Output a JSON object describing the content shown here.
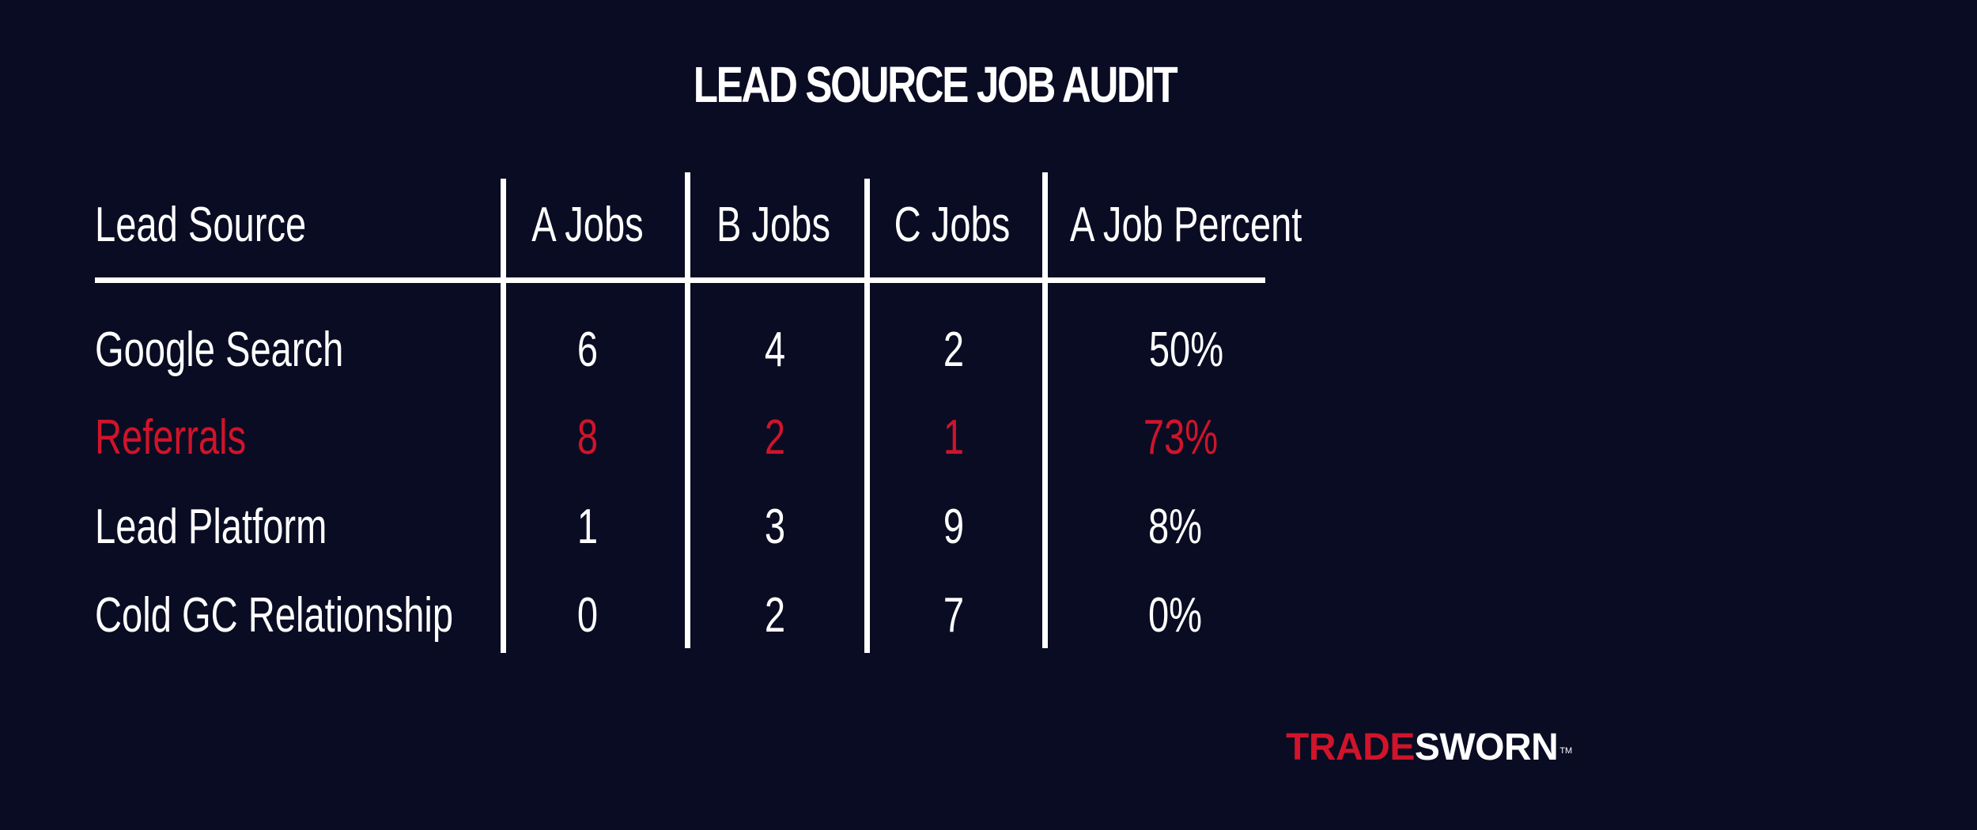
{
  "title": "LEAD SOURCE JOB AUDIT",
  "accent_color": "#d0142a",
  "background_color": "#0a0c23",
  "table": {
    "headers": [
      "Lead Source",
      "A Jobs",
      "B Jobs",
      "C Jobs",
      "A Job Percent"
    ],
    "rows": [
      {
        "source": "Google Search",
        "a": "6",
        "b": "4",
        "c": "2",
        "pct": "50%",
        "highlighted": false
      },
      {
        "source": "Referrals",
        "a": "8",
        "b": "2",
        "c": "1",
        "pct": "73%",
        "highlighted": true
      },
      {
        "source": "Lead Platform",
        "a": "1",
        "b": "3",
        "c": "9",
        "pct": "8%",
        "highlighted": false
      },
      {
        "source": "Cold GC Relationship",
        "a": "0",
        "b": "2",
        "c": "7",
        "pct": "0%",
        "highlighted": false
      }
    ]
  },
  "logo": {
    "part1": "TRADE",
    "part2": "SWORN",
    "tm": "TM"
  }
}
